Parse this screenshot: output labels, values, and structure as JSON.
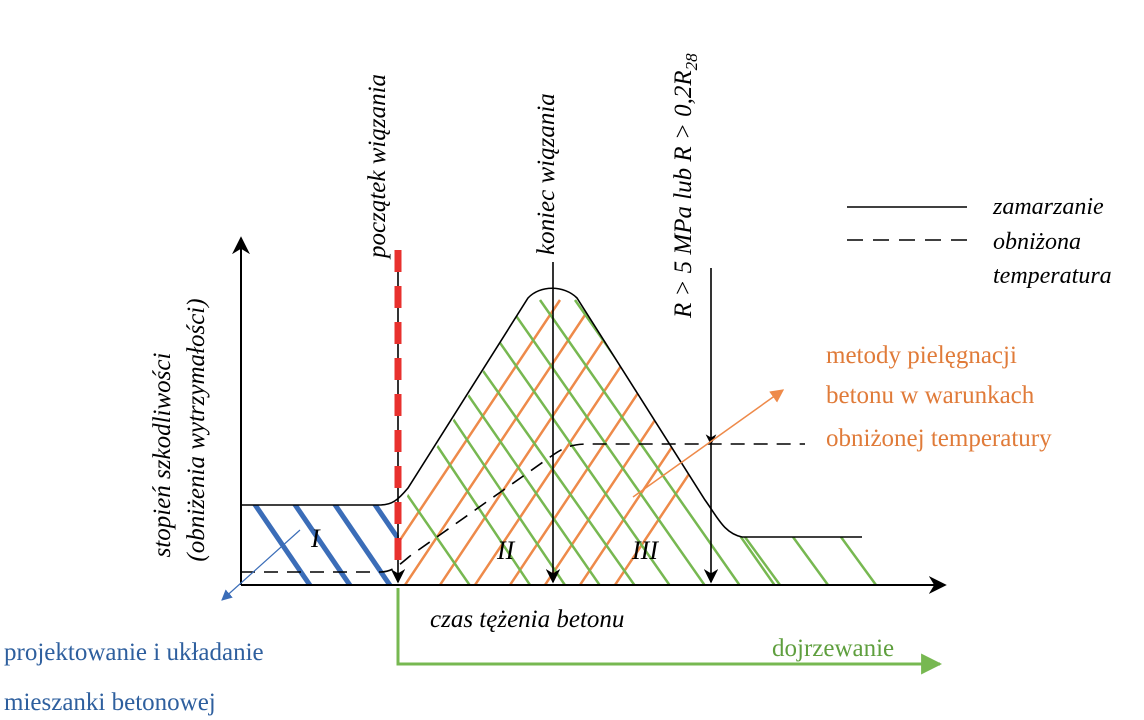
{
  "y_axis_label_line1": "stopień szkodliwości",
  "y_axis_label_line2": "(obniżenia wytrzymałości)",
  "x_axis_label": "czas tężenia betonu",
  "markers": {
    "poczatek": "początek wiązania",
    "koniec": "koniec wiązania",
    "strength_main": "R > 5 MPa lub R > 0,2R",
    "strength_sub": "28"
  },
  "legend": {
    "solid": "zamarzanie",
    "dashed_line1": "obniżona",
    "dashed_line2": "temperatura"
  },
  "zones": {
    "I": "I",
    "II": "II",
    "III": "III"
  },
  "annotations": {
    "metody_line1": "metody pielęgnacji",
    "metody_line2": "betonu w warunkach",
    "metody_line3": "obniżonej temperatury",
    "projekt_line1": "projektowanie i układanie",
    "projekt_line2": "mieszanki betonowej",
    "dojrzewanie": "dojrzewanie"
  },
  "colors": {
    "blue": "#3b6db8",
    "orange": "#ee8a4a",
    "green": "#77b851",
    "red": "#e8312e",
    "blue_text": "#2e5f9e",
    "orange_text": "#e07b39",
    "green_text": "#5f9f3e"
  }
}
